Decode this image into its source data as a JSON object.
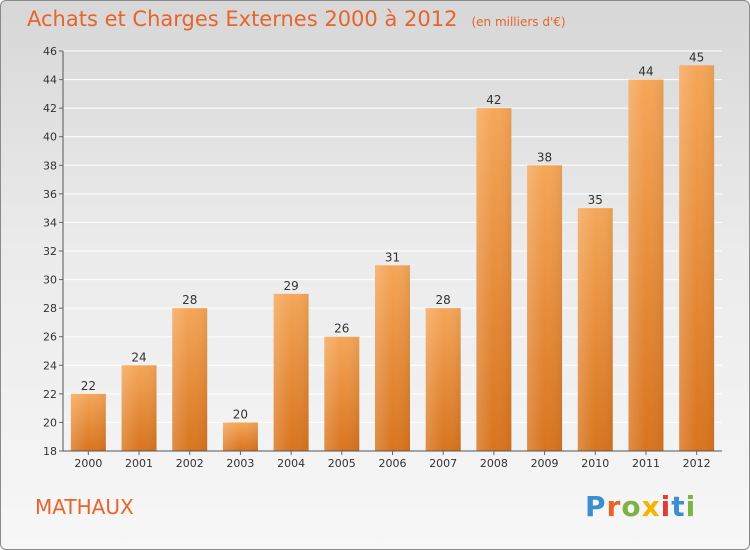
{
  "header": {
    "title": "Achats et Charges Externes 2000 à 2012",
    "unit": "(en milliers d'€)"
  },
  "footer": {
    "commune": "MATHAUX",
    "logo_text": "Proxiti"
  },
  "colors": {
    "accent": "#e8642a",
    "bar_top": "#f5a658",
    "bar_bottom": "#d8741e",
    "logo_letters": [
      "#3a8fd1",
      "#e8642a",
      "#7cb342",
      "#f4b400",
      "#e53935",
      "#3a8fd1",
      "#7cb342"
    ]
  },
  "chart_data": {
    "type": "bar",
    "title": "Achats et Charges Externes 2000 à 2012",
    "subtitle": "(en milliers d'€)",
    "categories": [
      "2000",
      "2001",
      "2002",
      "2003",
      "2004",
      "2005",
      "2006",
      "2007",
      "2008",
      "2009",
      "2010",
      "2011",
      "2012"
    ],
    "values": [
      22,
      24,
      28,
      20,
      29,
      26,
      31,
      28,
      42,
      38,
      35,
      44,
      45
    ],
    "ylim": [
      18,
      46
    ],
    "yticks": [
      18,
      20,
      22,
      24,
      26,
      28,
      30,
      32,
      34,
      36,
      38,
      40,
      42,
      44,
      46
    ],
    "grid": true,
    "legend": "none"
  }
}
